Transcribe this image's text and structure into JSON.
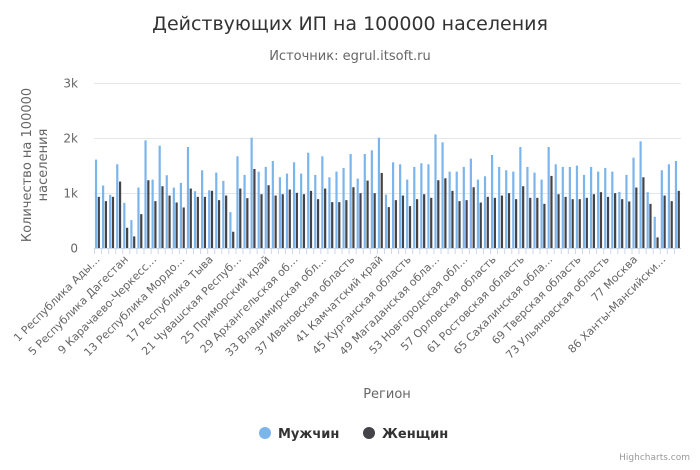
{
  "chart_data": {
    "type": "bar",
    "title": "Действующих ИП на 100000 населения",
    "subtitle": "Источник: egrul.itsoft.ru",
    "xlabel": "Регион",
    "ylabel": [
      "Количество на 100000",
      "населения"
    ],
    "ylim": [
      0,
      3000
    ],
    "yticks": [
      0,
      1000,
      2000,
      3000
    ],
    "ytick_labels": [
      "0",
      "1k",
      "2k",
      "3k"
    ],
    "grid": true,
    "legend_position": "bottom-center",
    "categories": [
      "1 Республика Ады…",
      "",
      "",
      "",
      "5 Республика Дагестан",
      "",
      "",
      "",
      "9 Карачаево-Черкесс…",
      "",
      "",
      "",
      "13 Республика Мордо…",
      "",
      "",
      "",
      "17 Республика Тыва",
      "",
      "",
      "",
      "21 Чувашская Респуб…",
      "",
      "",
      "",
      "25 Приморский край",
      "",
      "",
      "",
      "29 Архангельская об…",
      "",
      "",
      "",
      "33 Владимирская обл…",
      "",
      "",
      "",
      "37 Ивановская область",
      "",
      "",
      "",
      "41 Камчатский край",
      "",
      "",
      "",
      "45 Курганская область",
      "",
      "",
      "",
      "49 Магаданская обла…",
      "",
      "",
      "",
      "53 Новгородская обл…",
      "",
      "",
      "",
      "57 Орловская область",
      "",
      "",
      "",
      "61 Ростовская область",
      "",
      "",
      "",
      "65 Сахалинская обла…",
      "",
      "",
      "",
      "69 Тверская область",
      "",
      "",
      "",
      "73 Ульяновская область",
      "",
      "",
      "",
      "77 Москва",
      "",
      "",
      "",
      "86 Ханты-Мансийски…",
      "",
      ""
    ],
    "series": [
      {
        "name": "Мужчин",
        "color": "#7cb5ec",
        "values": [
          1607,
          1135,
          966,
          1522,
          821,
          507,
          1099,
          1957,
          1244,
          1860,
          1323,
          1099,
          1184,
          1836,
          1033,
          1413,
          1050,
          1371,
          1220,
          652,
          1667,
          1329,
          2005,
          1389,
          1474,
          1582,
          1286,
          1353,
          1558,
          1353,
          1733,
          1329,
          1667,
          1286,
          1389,
          1456,
          1709,
          1262,
          1709,
          1776,
          2005,
          972,
          1558,
          1522,
          1244,
          1474,
          1540,
          1522,
          2066,
          1921,
          1389,
          1389,
          1474,
          1625,
          1244,
          1305,
          1691,
          1474,
          1413,
          1389,
          1836,
          1474,
          1371,
          1244,
          1836,
          1522,
          1474,
          1474,
          1498,
          1329,
          1474,
          1389,
          1456,
          1389,
          1020,
          1329,
          1643,
          1939,
          1015,
          568,
          1413,
          1522,
          1582
        ]
      },
      {
        "name": "Женщин",
        "color": "#434348",
        "values": [
          930,
          852,
          930,
          1208,
          368,
          211,
          616,
          1232,
          852,
          1123,
          954,
          827,
          737,
          1081,
          930,
          930,
          1040,
          870,
          954,
          296,
          1081,
          906,
          1437,
          978,
          1141,
          954,
          978,
          1063,
          1003,
          978,
          1039,
          888,
          1081,
          834,
          834,
          870,
          1105,
          997,
          1226,
          997,
          1365,
          743,
          870,
          954,
          761,
          888,
          978,
          912,
          1232,
          1268,
          1039,
          852,
          870,
          1105,
          827,
          930,
          912,
          954,
          997,
          888,
          1123,
          912,
          912,
          803,
          1311,
          978,
          930,
          888,
          888,
          912,
          978,
          1015,
          930,
          997,
          888,
          846,
          1099,
          1286,
          803,
          193,
          954,
          852,
          1039
        ]
      }
    ]
  },
  "credits": "Highcharts.com"
}
